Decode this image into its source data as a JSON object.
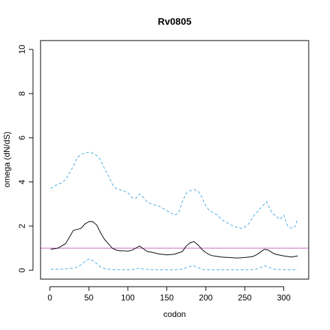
{
  "chart_data": {
    "type": "line",
    "title": "Rv0805",
    "xlabel": "codon",
    "ylabel": "omega (dN/dS)",
    "xlim": [
      -12,
      332
    ],
    "ylim": [
      -0.4,
      10.4
    ],
    "xticks": [
      0,
      50,
      100,
      150,
      200,
      250,
      300
    ],
    "yticks": [
      0,
      2,
      4,
      6,
      8,
      10
    ],
    "grid": false,
    "legend": "none",
    "reference_line": {
      "y": 1,
      "color": "#c060c0"
    },
    "series": [
      {
        "style": "solid",
        "color": "#000000",
        "x": [
          1,
          10,
          20,
          25,
          30,
          35,
          40,
          45,
          50,
          55,
          60,
          65,
          70,
          75,
          80,
          85,
          90,
          95,
          100,
          105,
          110,
          115,
          120,
          125,
          130,
          135,
          140,
          150,
          160,
          170,
          175,
          180,
          185,
          190,
          195,
          200,
          205,
          210,
          220,
          230,
          240,
          250,
          260,
          265,
          270,
          275,
          280,
          285,
          290,
          300,
          310,
          318
        ],
        "y": [
          0.95,
          1.0,
          1.2,
          1.5,
          1.8,
          1.85,
          1.9,
          2.1,
          2.2,
          2.2,
          2.05,
          1.7,
          1.4,
          1.2,
          1.0,
          0.92,
          0.88,
          0.88,
          0.87,
          0.9,
          1.0,
          1.1,
          0.97,
          0.85,
          0.82,
          0.78,
          0.74,
          0.7,
          0.73,
          0.85,
          1.1,
          1.25,
          1.3,
          1.15,
          0.95,
          0.8,
          0.7,
          0.65,
          0.6,
          0.58,
          0.56,
          0.58,
          0.62,
          0.7,
          0.82,
          0.95,
          0.92,
          0.8,
          0.72,
          0.65,
          0.6,
          0.65
        ]
      },
      {
        "style": "dashed",
        "color": "#4aa8e0",
        "x": [
          1,
          5,
          10,
          15,
          20,
          25,
          30,
          35,
          40,
          45,
          50,
          55,
          60,
          65,
          70,
          75,
          80,
          85,
          90,
          95,
          100,
          105,
          110,
          115,
          120,
          125,
          130,
          135,
          140,
          145,
          150,
          155,
          160,
          165,
          170,
          175,
          180,
          185,
          190,
          195,
          200,
          205,
          210,
          215,
          220,
          225,
          230,
          235,
          240,
          245,
          250,
          255,
          260,
          265,
          270,
          275,
          278,
          282,
          285,
          290,
          295,
          300,
          305,
          310,
          315,
          318
        ],
        "y": [
          3.7,
          3.8,
          3.9,
          3.95,
          4.1,
          4.4,
          4.7,
          5.1,
          5.25,
          5.3,
          5.35,
          5.3,
          5.2,
          5.0,
          4.6,
          4.3,
          3.9,
          3.7,
          3.65,
          3.6,
          3.5,
          3.3,
          3.25,
          3.45,
          3.3,
          3.1,
          3.0,
          2.95,
          2.9,
          2.8,
          2.7,
          2.6,
          2.5,
          2.6,
          3.1,
          3.5,
          3.6,
          3.65,
          3.6,
          3.3,
          2.9,
          2.7,
          2.6,
          2.5,
          2.3,
          2.2,
          2.1,
          2.0,
          1.95,
          1.9,
          1.95,
          2.1,
          2.4,
          2.6,
          2.8,
          3.0,
          3.1,
          2.8,
          2.6,
          2.45,
          2.3,
          2.5,
          2.0,
          1.9,
          2.0,
          2.35
        ]
      },
      {
        "style": "dashed",
        "color": "#4aa8e0",
        "x": [
          1,
          10,
          20,
          30,
          35,
          40,
          45,
          50,
          55,
          60,
          65,
          70,
          80,
          90,
          100,
          110,
          115,
          120,
          130,
          140,
          150,
          160,
          170,
          175,
          180,
          185,
          190,
          195,
          200,
          210,
          220,
          230,
          240,
          250,
          260,
          265,
          270,
          275,
          280,
          285,
          290,
          300,
          310,
          318
        ],
        "y": [
          0.05,
          0.05,
          0.06,
          0.1,
          0.15,
          0.25,
          0.4,
          0.5,
          0.45,
          0.3,
          0.15,
          0.08,
          0.03,
          0.02,
          0.02,
          0.05,
          0.1,
          0.05,
          0.03,
          0.02,
          0.02,
          0.02,
          0.05,
          0.12,
          0.18,
          0.2,
          0.12,
          0.05,
          0.02,
          0.02,
          0.02,
          0.02,
          0.02,
          0.02,
          0.03,
          0.06,
          0.12,
          0.2,
          0.15,
          0.08,
          0.04,
          0.02,
          0.02,
          0.03
        ]
      }
    ]
  }
}
